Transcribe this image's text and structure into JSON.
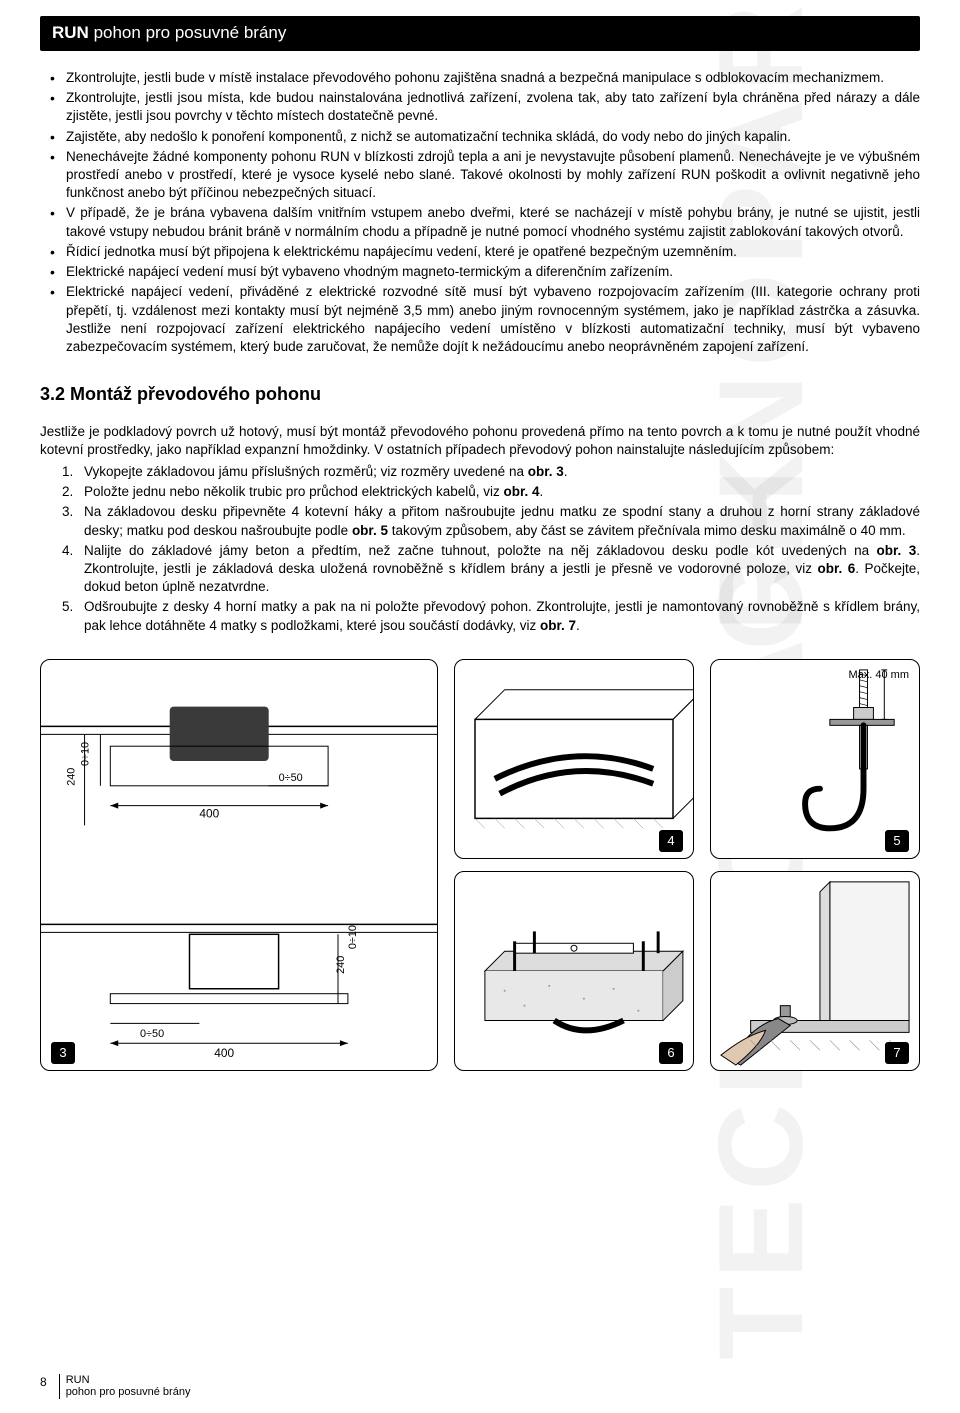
{
  "header": {
    "bold": "RUN",
    "rest": " pohon pro posuvné brány"
  },
  "watermark": "TECHNOPARK",
  "bullets": [
    "Zkontrolujte, jestli bude v místě instalace převodového pohonu zajištěna snadná a bezpečná manipulace s odblokovacím mechanizmem.",
    "Zkontrolujte, jestli jsou místa, kde budou nainstalována jednotlivá zařízení, zvolena tak, aby tato zařízení byla chráněna před nárazy a dále zjistěte, jestli jsou povrchy v těchto místech dostatečně pevné.",
    "Zajistěte, aby nedošlo k ponoření komponentů, z nichž se automatizační technika skládá, do vody nebo do jiných kapalin.",
    "Nenechávejte žádné komponenty pohonu RUN v blízkosti zdrojů tepla a ani je nevystavujte působení plamenů. Nenechávejte je ve výbušném prostředí anebo v prostředí, které je vysoce kyselé nebo slané. Takové okolnosti by mohly zařízení RUN poškodit a ovlivnit negativně jeho funkčnost anebo být příčinou nebezpečných situací.",
    "V případě, že je brána vybavena dalším vnitřním vstupem anebo dveřmi, které se nacházejí v místě pohybu brány, je nutné se ujistit, jestli takové vstupy nebudou bránit bráně v normálním chodu a případně je nutné pomocí vhodného systému zajistit zablokování takových otvorů.",
    "Řídicí jednotka musí být připojena k elektrickému napájecímu vedení, které je opatřené bezpečným uzemněním.",
    "Elektrické napájecí vedení musí být vybaveno vhodným magneto-termickým a diferenčním zařízením.",
    "Elektrické napájecí vedení, přiváděné z elektrické rozvodné sítě musí být vybaveno rozpojovacím zařízením (III. kategorie ochrany proti přepětí, tj. vzdálenost mezi kontakty musí být nejméně 3,5 mm) anebo jiným rovnocenným systémem, jako je například zástrčka a zásuvka. Jestliže není rozpojovací zařízení elektrického napájecího vedení umístěno v blízkosti automatizační techniky, musí být vybaveno zabezpečovacím systémem, který bude zaručovat, že nemůže dojít k nežádoucímu anebo neoprávněném zapojení zařízení."
  ],
  "section32": "3.2 Montáž převodového pohonu",
  "intro": "Jestliže je podkladový povrch už hotový, musí být montáž převodového pohonu provedená přímo na tento povrch a k tomu je nutné použít vhodné kotevní prostředky, jako například expanzní hmoždinky. V ostatních případech převodový pohon nainstalujte následujícím způsobem:",
  "steps": [
    "Vykopejte základovou jámu příslušných rozměrů; viz rozměry uvedené na <b>obr. 3</b>.",
    "Položte jednu nebo několik trubic pro průchod elektrických kabelů, viz <b>obr. 4</b>.",
    "Na základovou desku připevněte 4 kotevní háky a přitom našroubujte jednu matku ze spodní stany a druhou z horní strany základové desky; matku pod deskou našroubujte podle <b>obr. 5</b> takovým způsobem, aby část se závitem přečnívala mimo desku maximálně o 40  mm.",
    "Nalijte do základové jámy beton a předtím, než začne tuhnout, položte na něj základovou desku podle kót uvedených na <b>obr. 3</b>. Zkontrolujte, jestli je základová deska uložená rovnoběžně s křídlem brány a jestli je přesně ve vodorovné poloze, viz <b>obr. 6</b>. Počkejte, dokud beton úplně nezatvrdne.",
    "Odšroubujte z desky 4 horní matky a pak na ni položte převodový pohon. Zkontrolujte, jestli je namontovaný rovnoběžně s křídlem brány, pak lehce dotáhněte 4 matky s podložkami, které jsou součástí dodávky, viz <b>obr. 7</b>."
  ],
  "figs": {
    "f3": "3",
    "f4": "4",
    "f5": "5",
    "f6": "6",
    "f7": "7",
    "max40": "Max. 40 mm",
    "dims": {
      "w400": "400",
      "h240": "240",
      "o10": "0÷10",
      "o50": "0÷50"
    }
  },
  "footer": {
    "page": "8",
    "line1": "RUN",
    "line2": "pohon pro posuvné brány"
  }
}
